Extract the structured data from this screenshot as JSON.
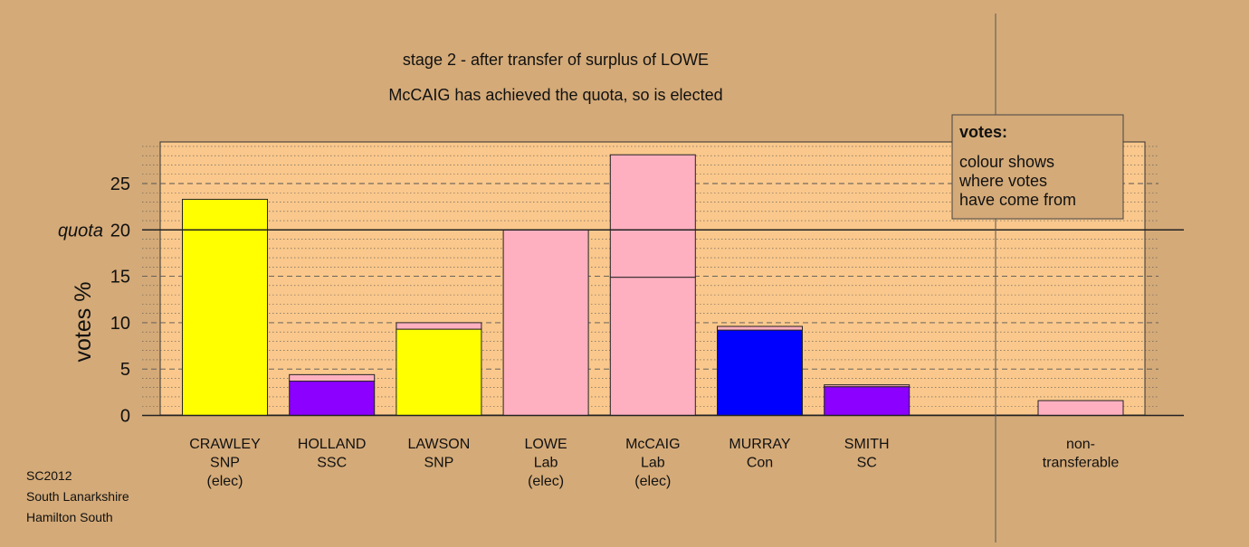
{
  "chart_data": {
    "type": "bar",
    "stacked": true,
    "title": "stage 2 - after transfer of surplus of LOWE",
    "subtitle": "McCAIG has achieved the quota, so is elected",
    "ylabel": "votes %",
    "ylim": [
      0,
      29.5
    ],
    "yticks": [
      0,
      5,
      10,
      15,
      20,
      25
    ],
    "quota": 20,
    "quota_label": "quota",
    "grid": "dashed at every 5, dotted at every 1",
    "candidates": [
      {
        "name": "CRAWLEY",
        "party": "SNP",
        "status": "(elec)",
        "segments": [
          {
            "value": 23.3,
            "color": "#ffff00"
          }
        ]
      },
      {
        "name": "HOLLAND",
        "party": "SSC",
        "status": "",
        "segments": [
          {
            "value": 3.7,
            "color": "#8b00ff"
          },
          {
            "value": 0.7,
            "color": "#ffb0c0"
          }
        ]
      },
      {
        "name": "LAWSON",
        "party": "SNP",
        "status": "",
        "segments": [
          {
            "value": 9.3,
            "color": "#ffff00"
          },
          {
            "value": 0.7,
            "color": "#ffb0c0"
          }
        ]
      },
      {
        "name": "LOWE",
        "party": "Lab",
        "status": "(elec)",
        "segments": [
          {
            "value": 20.0,
            "color": "#ffb0c0"
          }
        ]
      },
      {
        "name": "McCAIG",
        "party": "Lab",
        "status": "(elec)",
        "segments": [
          {
            "value": 14.9,
            "color": "#ffb0c0"
          },
          {
            "value": 13.2,
            "color": "#ffb0c0"
          }
        ]
      },
      {
        "name": "MURRAY",
        "party": "Con",
        "status": "",
        "segments": [
          {
            "value": 9.2,
            "color": "#0000ff"
          },
          {
            "value": 0.4,
            "color": "#ffb0c0"
          }
        ]
      },
      {
        "name": "SMITH",
        "party": "SC",
        "status": "",
        "segments": [
          {
            "value": 3.1,
            "color": "#8b00ff"
          },
          {
            "value": 0.2,
            "color": "#ffb0c0"
          }
        ]
      }
    ],
    "nontransferable": {
      "line1": "non-",
      "line2": "transferable",
      "value": 1.6,
      "color": "#ffb0c0"
    },
    "legend": {
      "title": "votes:",
      "lines": [
        "colour shows",
        "where votes",
        "have come from"
      ],
      "placement": "top-right"
    }
  },
  "footer": {
    "line1": "SC2012",
    "line2": "South Lanarkshire",
    "line3": "Hamilton South"
  }
}
